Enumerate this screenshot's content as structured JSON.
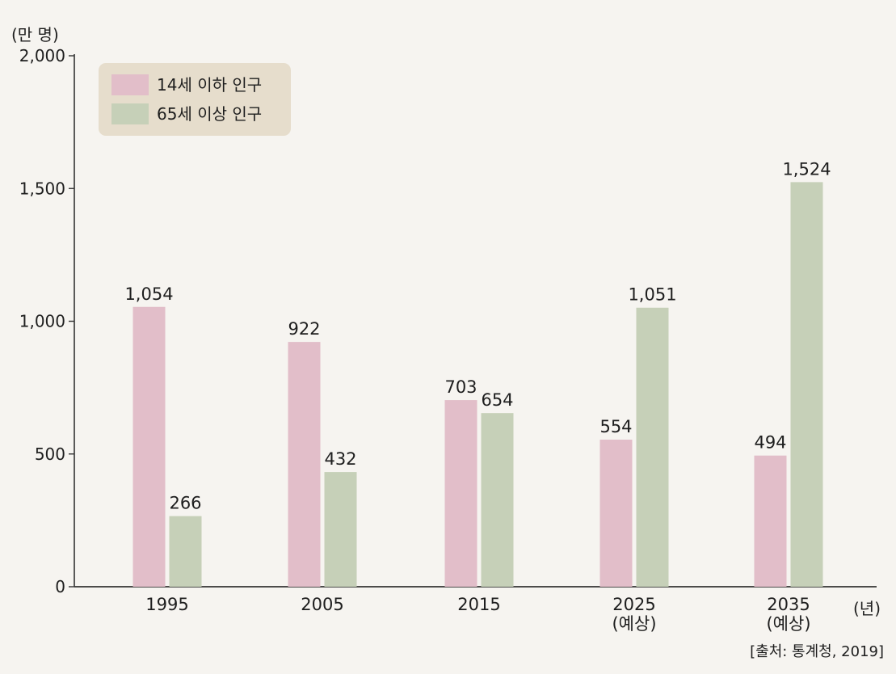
{
  "chart_data": {
    "type": "bar",
    "ylabel": "(만 명)",
    "xunit": "(년)",
    "ylim": [
      0,
      2000
    ],
    "yticks": [
      "0",
      "500",
      "1,000",
      "1,500",
      "2,000"
    ],
    "categories": [
      "1995",
      "2005",
      "2015",
      "2025",
      "2035"
    ],
    "category_notes": [
      "",
      "",
      "",
      "(예상)",
      "(예상)"
    ],
    "series": [
      {
        "name": "14세 이하 인구",
        "color": "#e2bec9",
        "values": [
          1054,
          922,
          703,
          554,
          494
        ],
        "labels": [
          "1,054",
          "922",
          "703",
          "554",
          "494"
        ]
      },
      {
        "name": "65세 이상 인구",
        "color": "#c6d0b8",
        "values": [
          266,
          432,
          654,
          1051,
          1524
        ],
        "labels": [
          "266",
          "432",
          "654",
          "1,051",
          "1,524"
        ]
      }
    ],
    "legend_position": "top-left",
    "grid": false,
    "source": "[출처: 통계청, 2019]"
  }
}
